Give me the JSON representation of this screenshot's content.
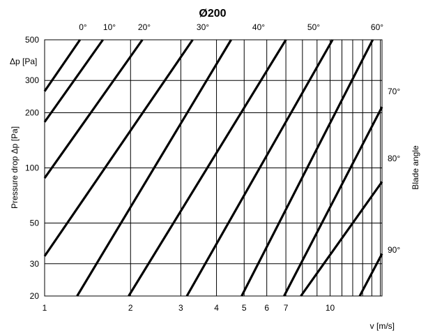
{
  "chart_data": {
    "type": "line",
    "title": "Ø200",
    "xlabel": "v [m/s]",
    "ylabel": "Pressure drop Δp [Pa]",
    "y_unit_label": "Δp [Pa]",
    "right_label": "Blade angle",
    "x_scale": "log",
    "y_scale": "log",
    "xlim": [
      1,
      15.2
    ],
    "ylim": [
      20,
      500
    ],
    "grid": true,
    "x_gridlines": [
      1,
      2,
      3,
      4,
      5,
      6,
      7,
      8,
      9,
      10,
      11,
      12,
      13,
      14,
      15
    ],
    "x_ticks": [
      1,
      2,
      3,
      4,
      5,
      6,
      7,
      10
    ],
    "y_ticks": [
      20,
      30,
      50,
      100,
      200,
      300,
      500
    ],
    "series": [
      {
        "name": "0°",
        "points": [
          [
            1,
            262
          ],
          [
            1.33,
            500
          ]
        ]
      },
      {
        "name": "10°",
        "points": [
          [
            1,
            178
          ],
          [
            1.6,
            500
          ]
        ]
      },
      {
        "name": "",
        "points": [
          [
            1,
            88
          ],
          [
            2.2,
            500
          ]
        ]
      },
      {
        "name": "20°",
        "points": [
          [
            1,
            33
          ],
          [
            3.3,
            500
          ]
        ]
      },
      {
        "name": "",
        "points": [
          [
            1.3,
            20
          ],
          [
            4.5,
            500
          ]
        ]
      },
      {
        "name": "30°",
        "points": [
          [
            1.97,
            20
          ],
          [
            7,
            500
          ]
        ]
      },
      {
        "name": "",
        "points": [
          [
            3.15,
            20
          ],
          [
            10.2,
            500
          ]
        ]
      },
      {
        "name": "40°",
        "points": [
          [
            4.9,
            20
          ],
          [
            14.1,
            500
          ]
        ]
      },
      {
        "name": "",
        "points": [
          [
            6.9,
            20
          ],
          [
            15.2,
            215
          ]
        ]
      },
      {
        "name": "50°",
        "points": [
          [
            7.9,
            20
          ],
          [
            15.2,
            84
          ]
        ]
      },
      {
        "name": "",
        "points": [
          [
            12.7,
            20
          ],
          [
            15.2,
            34
          ]
        ]
      }
    ],
    "blade_angle_labels_top": [
      "0°",
      "10°",
      "20°",
      "30°",
      "40°",
      "50°",
      "60°"
    ],
    "blade_angle_labels_right": [
      "70°",
      "80°",
      "90°"
    ]
  }
}
